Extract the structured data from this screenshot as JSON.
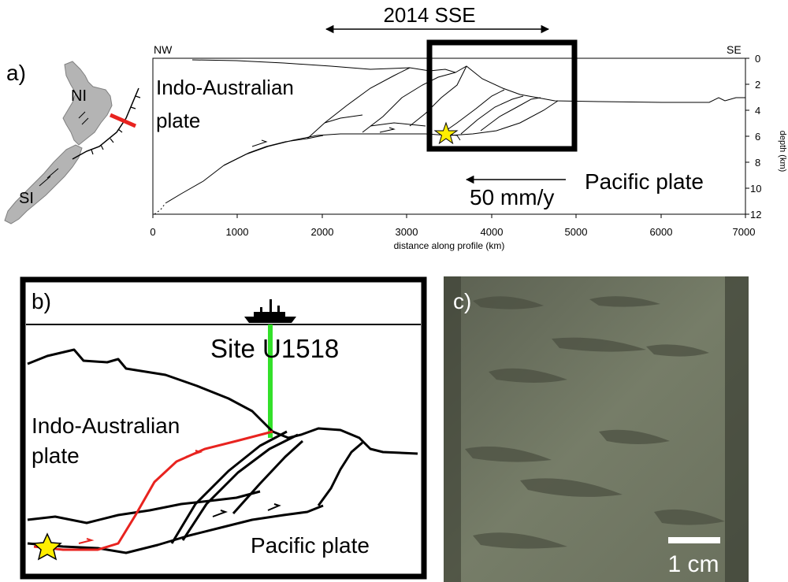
{
  "panel_a": {
    "label": "a)",
    "sse_label": "2014 SSE",
    "nw": "NW",
    "se": "SE",
    "ni": "NI",
    "si": "SI",
    "indo_line1": "Indo-Australian",
    "indo_line2": "plate",
    "pacific": "Pacific plate",
    "rate": "50 mm/y",
    "depth_axis_label": "depth (km)",
    "distance_axis_label": "distance along profile (km)",
    "x_ticks": [
      "0",
      "1000",
      "2000",
      "3000",
      "4000",
      "5000",
      "6000",
      "7000"
    ],
    "y_ticks": [
      "0",
      "2",
      "4",
      "6",
      "8",
      "10",
      "12"
    ]
  },
  "panel_b": {
    "label": "b)",
    "site": "Site U1518",
    "indo_line1": "Indo-Australian",
    "indo_line2": "plate",
    "pacific": "Pacific plate"
  },
  "panel_c": {
    "label": "c)",
    "scale": "1 cm"
  },
  "colors": {
    "fault_red": "#e8231f",
    "borehole_green": "#33e02a",
    "star_yellow": "#ffee00",
    "core_gray": "#6e7560"
  }
}
